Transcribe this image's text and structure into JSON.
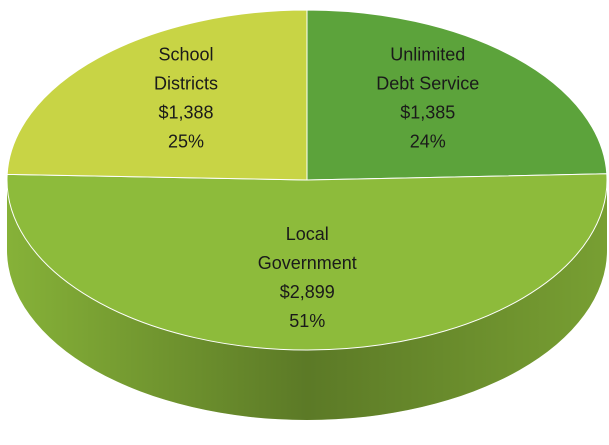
{
  "chart_data": {
    "type": "pie",
    "categories": [
      [
        "Unlimited",
        "Debt Service"
      ],
      [
        "Local",
        "Government"
      ],
      [
        "School",
        "Districts"
      ]
    ],
    "values": [
      1385,
      2899,
      1388
    ],
    "value_labels": [
      "$1,385",
      "$2,899",
      "$1,388"
    ],
    "percents": [
      24,
      51,
      25
    ],
    "percent_labels": [
      "24%",
      "51%",
      "25%"
    ],
    "colors": [
      "#5ca33b",
      "#8dbb3b",
      "#c8d445"
    ]
  }
}
